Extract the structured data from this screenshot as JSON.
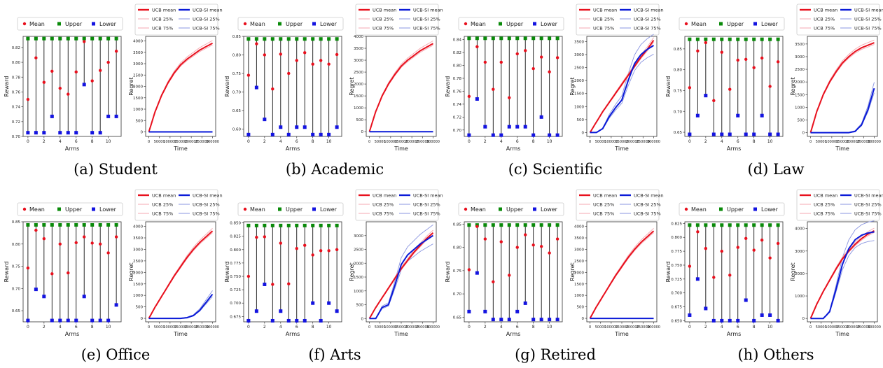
{
  "legend_arms": {
    "mean": "Mean",
    "upper": "Upper",
    "lower": "Lower"
  },
  "legend_regret": {
    "ucb_mean": "UCB mean",
    "ucb_25": "UCB 25%",
    "ucb_75": "UCB 75%",
    "si_mean": "UCB-SI mean",
    "si_25": "UCB-SI 25%",
    "si_75": "UCB-SI 75%"
  },
  "colors": {
    "ucb": "#e8101d",
    "ucb_band": "#f4a7b0",
    "si": "#0a1ad8",
    "si_band": "#8a95e0",
    "mean": "#e8101d",
    "upper": "#0a8a0a",
    "lower": "#1414e0"
  },
  "arms_x_ticks": [
    "0",
    "2",
    "4",
    "6",
    "8",
    "10"
  ],
  "time_ticks": [
    "0",
    "50000",
    "100000",
    "150000",
    "200000",
    "250000",
    "300000"
  ],
  "chart_data": [
    {
      "type": "scatter",
      "caption": "(a) Student",
      "xlabel": "Arms",
      "ylabel": "Reward",
      "ylim": [
        0.7,
        0.835
      ],
      "yticks": [
        "0.70",
        "0.72",
        "0.74",
        "0.76",
        "0.78",
        "0.80",
        "0.82"
      ],
      "arms": [
        0,
        1,
        2,
        3,
        4,
        5,
        6,
        7,
        8,
        9,
        10,
        11
      ],
      "upper": 0.832,
      "mean": [
        0.75,
        0.806,
        0.773,
        0.788,
        0.765,
        0.757,
        0.787,
        0.828,
        0.775,
        0.789,
        0.8,
        0.815
      ],
      "lower": [
        0.705,
        0.705,
        0.705,
        0.727,
        0.705,
        0.705,
        0.705,
        0.77,
        0.705,
        0.705,
        0.727,
        0.727
      ]
    },
    {
      "type": "line",
      "xlabel": "Time",
      "ylabel": "Regret",
      "ylim": [
        -200,
        4200
      ],
      "yticks": [
        "0",
        "500",
        "1000",
        "1500",
        "2000",
        "2500",
        "3000",
        "3500",
        "4000"
      ],
      "x": [
        0,
        30000,
        60000,
        90000,
        120000,
        150000,
        180000,
        210000,
        240000,
        270000,
        300000
      ],
      "ucb_mean": [
        0,
        900,
        1600,
        2150,
        2600,
        2950,
        3200,
        3400,
        3600,
        3750,
        3900
      ],
      "si_mean": [
        0,
        0,
        0,
        0,
        0,
        0,
        0,
        0,
        0,
        0,
        0
      ]
    },
    {
      "type": "scatter",
      "caption": "(b) Academic",
      "xlabel": "Arms",
      "ylabel": "Reward",
      "ylim": [
        0.58,
        0.85
      ],
      "yticks": [
        "0.60",
        "0.65",
        "0.70",
        "0.75",
        "0.80",
        "0.85"
      ],
      "arms": [
        0,
        1,
        2,
        3,
        4,
        5,
        6,
        7,
        8,
        9,
        10,
        11
      ],
      "upper": 0.843,
      "mean": [
        0.745,
        0.83,
        0.8,
        0.708,
        0.802,
        0.75,
        0.785,
        0.806,
        0.775,
        0.785,
        0.775,
        0.801
      ],
      "lower": [
        0.585,
        0.712,
        0.626,
        0.585,
        0.605,
        0.585,
        0.605,
        0.605,
        0.585,
        0.585,
        0.585,
        0.605
      ]
    },
    {
      "type": "line",
      "xlabel": "Time",
      "ylabel": "Regret",
      "ylim": [
        -200,
        4000
      ],
      "yticks": [
        "0",
        "500",
        "1000",
        "1500",
        "2000",
        "2500",
        "3000",
        "3500",
        "4000"
      ],
      "x": [
        0,
        30000,
        60000,
        90000,
        120000,
        150000,
        180000,
        210000,
        240000,
        270000,
        300000
      ],
      "ucb_mean": [
        0,
        850,
        1500,
        2000,
        2400,
        2750,
        3000,
        3200,
        3400,
        3550,
        3700
      ],
      "si_mean": [
        0,
        0,
        0,
        0,
        0,
        0,
        0,
        0,
        0,
        0,
        0
      ]
    },
    {
      "type": "scatter",
      "caption": "(c) Scientific",
      "xlabel": "Arms",
      "ylabel": "Reward",
      "ylim": [
        0.69,
        0.845
      ],
      "yticks": [
        "0.70",
        "0.72",
        "0.74",
        "0.76",
        "0.78",
        "0.80",
        "0.82",
        "0.84"
      ],
      "arms": [
        0,
        1,
        2,
        3,
        4,
        5,
        6,
        7,
        8,
        9,
        10,
        11
      ],
      "upper": 0.842,
      "mean": [
        0.752,
        0.829,
        0.805,
        0.763,
        0.805,
        0.75,
        0.818,
        0.823,
        0.795,
        0.813,
        0.79,
        0.812
      ],
      "lower": [
        0.692,
        0.748,
        0.705,
        0.692,
        0.692,
        0.705,
        0.705,
        0.705,
        0.692,
        0.72,
        0.692,
        0.692
      ]
    },
    {
      "type": "line",
      "xlabel": "Time",
      "ylabel": "Regret",
      "ylim": [
        -150,
        3700
      ],
      "yticks": [
        "0",
        "500",
        "1000",
        "1500",
        "2000",
        "2500",
        "3000",
        "3500"
      ],
      "x": [
        0,
        30000,
        60000,
        90000,
        120000,
        150000,
        180000,
        210000,
        240000,
        270000,
        300000
      ],
      "ucb_mean": [
        0,
        400,
        800,
        1150,
        1500,
        1850,
        2200,
        2550,
        2900,
        3200,
        3550
      ],
      "si_mean": [
        0,
        0,
        150,
        600,
        950,
        1250,
        2000,
        2650,
        3000,
        3200,
        3350
      ]
    },
    {
      "type": "scatter",
      "caption": "(d) Law",
      "xlabel": "Arms",
      "ylabel": "Reward",
      "ylim": [
        0.64,
        0.88
      ],
      "yticks": [
        "0.65",
        "0.70",
        "0.75",
        "0.80",
        "0.85"
      ],
      "arms": [
        0,
        1,
        2,
        3,
        4,
        5,
        6,
        7,
        8,
        9,
        10,
        11
      ],
      "upper": 0.873,
      "mean": [
        0.757,
        0.845,
        0.865,
        0.726,
        0.842,
        0.753,
        0.823,
        0.825,
        0.805,
        0.828,
        0.76,
        0.819
      ],
      "lower": [
        0.645,
        0.69,
        0.738,
        0.645,
        0.645,
        0.645,
        0.69,
        0.645,
        0.645,
        0.69,
        0.645,
        0.645
      ]
    },
    {
      "type": "line",
      "xlabel": "Time",
      "ylabel": "Regret",
      "ylim": [
        -150,
        3800
      ],
      "yticks": [
        "0",
        "500",
        "1000",
        "1500",
        "2000",
        "2500",
        "3000",
        "3500"
      ],
      "x": [
        0,
        30000,
        60000,
        90000,
        120000,
        150000,
        180000,
        210000,
        240000,
        270000,
        300000
      ],
      "ucb_mean": [
        0,
        850,
        1500,
        2000,
        2400,
        2750,
        3000,
        3200,
        3350,
        3450,
        3550
      ],
      "si_mean": [
        0,
        0,
        0,
        0,
        0,
        0,
        0,
        50,
        300,
        900,
        1750
      ]
    },
    {
      "type": "scatter",
      "caption": "(e) Office",
      "xlabel": "Arms",
      "ylabel": "Reward",
      "ylim": [
        0.625,
        0.85
      ],
      "yticks": [
        "0.65",
        "0.70",
        "0.75",
        "0.80",
        "0.85"
      ],
      "arms": [
        0,
        1,
        2,
        3,
        4,
        5,
        6,
        7,
        8,
        9,
        10,
        11
      ],
      "upper": 0.843,
      "mean": [
        0.746,
        0.831,
        0.812,
        0.733,
        0.8,
        0.735,
        0.803,
        0.816,
        0.802,
        0.8,
        0.78,
        0.816
      ],
      "lower": [
        0.628,
        0.698,
        0.682,
        0.628,
        0.628,
        0.628,
        0.628,
        0.682,
        0.628,
        0.628,
        0.628,
        0.663
      ]
    },
    {
      "type": "line",
      "xlabel": "Time",
      "ylabel": "Regret",
      "ylim": [
        -150,
        4200
      ],
      "yticks": [
        "0",
        "500",
        "1000",
        "1500",
        "2000",
        "2500",
        "3000",
        "3500",
        "4000"
      ],
      "x": [
        0,
        30000,
        60000,
        90000,
        120000,
        150000,
        180000,
        210000,
        240000,
        270000,
        300000
      ],
      "ucb_mean": [
        0,
        500,
        950,
        1400,
        1850,
        2250,
        2650,
        3000,
        3300,
        3550,
        3800
      ],
      "si_mean": [
        0,
        0,
        0,
        0,
        0,
        0,
        30,
        120,
        350,
        700,
        1050
      ]
    },
    {
      "type": "scatter",
      "caption": "(f) Arts",
      "xlabel": "Arms",
      "ylabel": "Reward",
      "ylim": [
        0.665,
        0.852
      ],
      "yticks": [
        "0.675",
        "0.700",
        "0.725",
        "0.750",
        "0.775",
        "0.800",
        "0.825",
        "0.850"
      ],
      "arms": [
        0,
        1,
        2,
        3,
        4,
        5,
        6,
        7,
        8,
        9,
        10,
        11
      ],
      "upper": 0.845,
      "mean": [
        0.75,
        0.823,
        0.824,
        0.735,
        0.812,
        0.736,
        0.802,
        0.808,
        0.79,
        0.798,
        0.798,
        0.8
      ],
      "lower": [
        0.667,
        0.685,
        0.735,
        0.667,
        0.685,
        0.667,
        0.667,
        0.667,
        0.7,
        0.667,
        0.7,
        0.685
      ]
    },
    {
      "type": "line",
      "xlabel": "Time",
      "ylabel": "Regret",
      "ylim": [
        -120,
        3500
      ],
      "yticks": [
        "0",
        "500",
        "1000",
        "1500",
        "2000",
        "2500",
        "3000"
      ],
      "x": [
        0,
        30000,
        60000,
        90000,
        120000,
        150000,
        180000,
        210000,
        240000,
        270000,
        300000
      ],
      "ucb_mean": [
        0,
        400,
        750,
        1100,
        1450,
        1800,
        2100,
        2400,
        2650,
        2900,
        3100
      ],
      "si_mean": [
        0,
        0,
        400,
        500,
        1200,
        1950,
        2300,
        2500,
        2700,
        2850,
        3000
      ]
    },
    {
      "type": "scatter",
      "caption": "(g) Retired",
      "xlabel": "Arms",
      "ylabel": "Reward",
      "ylim": [
        0.64,
        0.855
      ],
      "yticks": [
        "0.65",
        "0.70",
        "0.75",
        "0.80",
        "0.85"
      ],
      "arms": [
        0,
        1,
        2,
        3,
        4,
        5,
        6,
        7,
        8,
        9,
        10,
        11
      ],
      "upper": 0.848,
      "mean": [
        0.752,
        0.845,
        0.818,
        0.726,
        0.812,
        0.74,
        0.8,
        0.827,
        0.805,
        0.802,
        0.788,
        0.818
      ],
      "lower": [
        0.662,
        0.745,
        0.662,
        0.645,
        0.645,
        0.645,
        0.662,
        0.68,
        0.645,
        0.645,
        0.645,
        0.645
      ]
    },
    {
      "type": "line",
      "xlabel": "Time",
      "ylabel": "Regret",
      "ylim": [
        -150,
        4200
      ],
      "yticks": [
        "0",
        "500",
        "1000",
        "1500",
        "2000",
        "2500",
        "3000",
        "3500",
        "4000"
      ],
      "x": [
        0,
        30000,
        60000,
        90000,
        120000,
        150000,
        180000,
        210000,
        240000,
        270000,
        300000
      ],
      "ucb_mean": [
        0,
        500,
        950,
        1400,
        1850,
        2250,
        2650,
        3000,
        3300,
        3550,
        3800
      ],
      "si_mean": [
        0,
        0,
        0,
        0,
        0,
        0,
        0,
        0,
        0,
        0,
        0
      ]
    },
    {
      "type": "scatter",
      "caption": "(h) Others",
      "xlabel": "Arms",
      "ylabel": "Reward",
      "ylim": [
        0.648,
        0.828
      ],
      "yticks": [
        "0.650",
        "0.675",
        "0.700",
        "0.725",
        "0.750",
        "0.775",
        "0.800",
        "0.825"
      ],
      "arms": [
        0,
        1,
        2,
        3,
        4,
        5,
        6,
        7,
        8,
        9,
        10,
        11
      ],
      "upper": 0.822,
      "mean": [
        0.748,
        0.81,
        0.78,
        0.728,
        0.775,
        0.732,
        0.782,
        0.798,
        0.777,
        0.795,
        0.763,
        0.789
      ],
      "lower": [
        0.66,
        0.725,
        0.672,
        0.65,
        0.65,
        0.65,
        0.65,
        0.687,
        0.65,
        0.66,
        0.66,
        0.65
      ]
    },
    {
      "type": "line",
      "xlabel": "Time",
      "ylabel": "Regret",
      "ylim": [
        -150,
        4300
      ],
      "yticks": [
        "0",
        "1000",
        "2000",
        "3000",
        "4000"
      ],
      "x": [
        0,
        30000,
        60000,
        90000,
        120000,
        150000,
        180000,
        210000,
        240000,
        270000,
        300000
      ],
      "ucb_mean": [
        0,
        650,
        1200,
        1700,
        2200,
        2650,
        3000,
        3300,
        3550,
        3750,
        3900
      ],
      "si_mean": [
        0,
        0,
        0,
        300,
        1300,
        2400,
        3100,
        3500,
        3700,
        3800,
        3850
      ]
    }
  ]
}
